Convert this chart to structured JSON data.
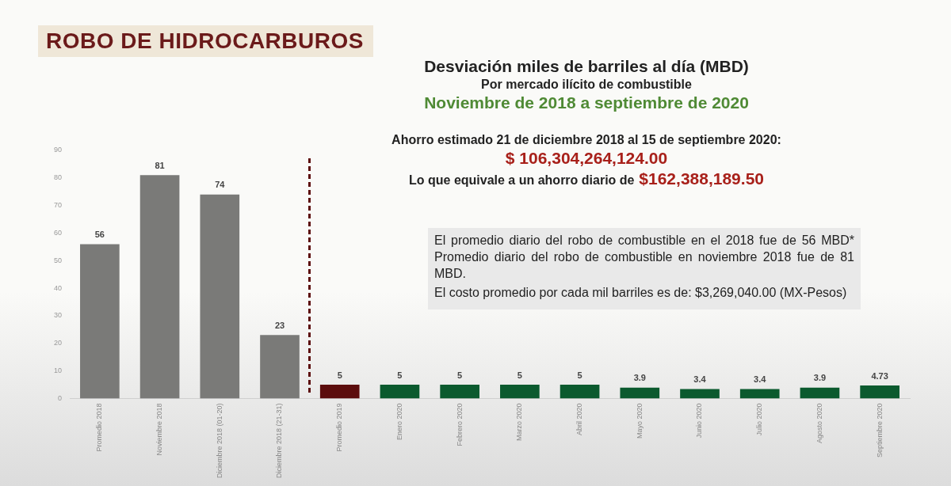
{
  "chart_data": {
    "type": "bar",
    "title": "ROBO DE HIDROCARBUROS",
    "subtitle": "Desviación miles de barriles al día (MBD)",
    "annotations": [
      "Por mercado ilícito de combustible",
      "Noviembre de 2018 a septiembre de 2020",
      "Ahorro estimado 21 de diciembre 2018 al 15 de septiembre 2020:",
      "$ 106,304,264,124.00",
      "Lo que equivale a un ahorro diario de",
      "$162,388,189.50",
      "El promedio diario del robo de combustible en el 2018 fue de 56 MBD* Promedio diario del robo de combustible en noviembre 2018 fue de 81 MBD.",
      "El costo promedio por cada mil barriles es de: $3,269,040.00 (MX-Pesos)"
    ],
    "categories": [
      "Promedio 2018",
      "Noviembre 2018",
      "Diciembre 2018 (01-20)",
      "Diciembre 2018 (21-31)",
      "Promedio 2019",
      "Enero 2020",
      "Febrero 2020",
      "Marzo 2020",
      "Abril 2020",
      "Mayo 2020",
      "Junio 2020",
      "Julio 2020",
      "Agosto 2020",
      "Septiembre 2020"
    ],
    "values": [
      56,
      81,
      74,
      23,
      5,
      5,
      5,
      5,
      5,
      3.9,
      3.4,
      3.4,
      3.9,
      4.73
    ],
    "colors": [
      "#7a7a78",
      "#7a7a78",
      "#7a7a78",
      "#7a7a78",
      "#5c0d0d",
      "#0b5a2e",
      "#0b5a2e",
      "#0b5a2e",
      "#0b5a2e",
      "#0b5a2e",
      "#0b5a2e",
      "#0b5a2e",
      "#0b5a2e",
      "#0b5a2e"
    ],
    "ylim": [
      0,
      90
    ],
    "yticks": [
      0,
      10,
      20,
      30,
      40,
      50,
      60,
      70,
      80,
      90
    ],
    "grid": false,
    "data_labels": true
  }
}
